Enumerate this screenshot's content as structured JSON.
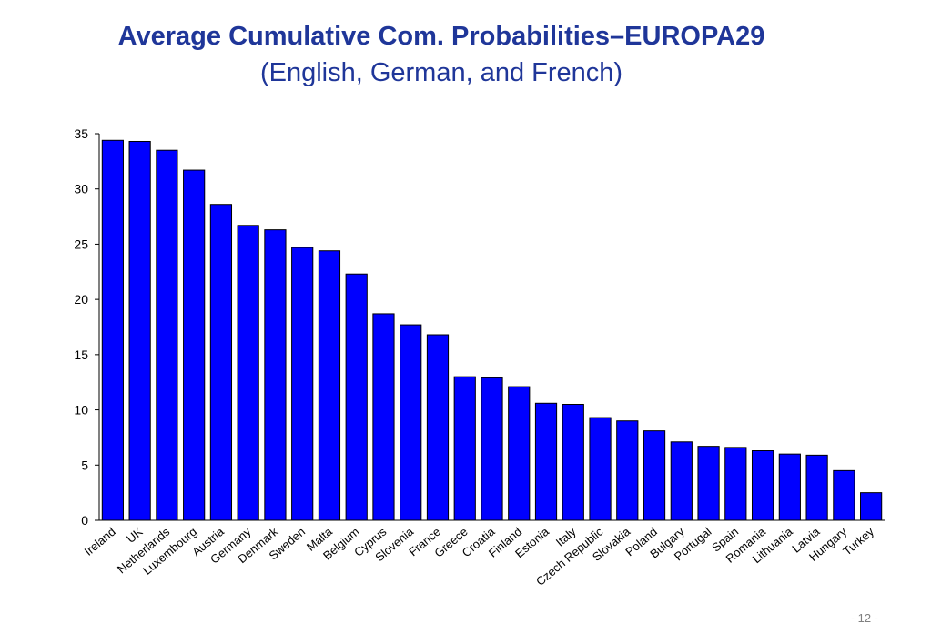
{
  "title": "Average Cumulative Com. Probabilities–EUROPA29",
  "subtitle": "(English, German, and French)",
  "page_number": "- 12 -",
  "colors": {
    "bar": "#0000ff",
    "bar_outline": "#000000",
    "title": "#1f3699"
  },
  "chart_data": {
    "type": "bar",
    "title": "Average Cumulative Com. Probabilities–EUROPA29",
    "subtitle": "(English, German, and French)",
    "xlabel": "",
    "ylabel": "",
    "ylim": [
      0,
      35
    ],
    "yticks": [
      0,
      5,
      10,
      15,
      20,
      25,
      30,
      35
    ],
    "grid": false,
    "categories": [
      "Ireland",
      "UK",
      "Netherlands",
      "Luxembourg",
      "Austria",
      "Germany",
      "Denmark",
      "Sweden",
      "Malta",
      "Belgium",
      "Cyprus",
      "Slovenia",
      "France",
      "Greece",
      "Croatia",
      "Finland",
      "Estonia",
      "Italy",
      "Czech Republic",
      "Slovakia",
      "Poland",
      "Bulgary",
      "Portugal",
      "Spain",
      "Romania",
      "Lithuania",
      "Latvia",
      "Hungary",
      "Turkey"
    ],
    "values": [
      34.4,
      34.3,
      33.5,
      31.7,
      28.6,
      26.7,
      26.3,
      24.7,
      24.4,
      22.3,
      18.7,
      17.7,
      16.8,
      13.0,
      12.9,
      12.1,
      10.6,
      10.5,
      9.3,
      9.0,
      8.1,
      7.1,
      6.7,
      6.6,
      6.3,
      6.0,
      5.9,
      4.5,
      2.5
    ]
  }
}
